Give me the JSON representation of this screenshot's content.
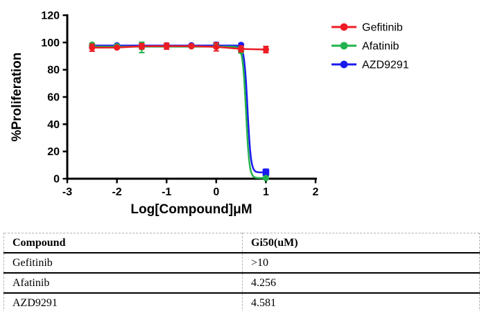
{
  "chart_data": {
    "type": "line",
    "title": "",
    "xlabel": "Log[Compound]μM",
    "ylabel": "%Proliferation",
    "xlim": [
      -3,
      2
    ],
    "ylim": [
      0,
      120
    ],
    "xticks": [
      "-3",
      "-2",
      "-1",
      "0",
      "1",
      "2"
    ],
    "yticks": [
      "0",
      "20",
      "40",
      "60",
      "80",
      "100",
      "120"
    ],
    "grid": false,
    "legend_position": "right",
    "x": [
      -2.5,
      -2,
      -1.5,
      -1,
      -0.5,
      0,
      0.5,
      1
    ],
    "series": [
      {
        "name": "Gefitinib",
        "color": "#ED1C24",
        "marker": "circle",
        "values": [
          96.2,
          96.3,
          97.2,
          97.3,
          97.3,
          96.8,
          95.3,
          94.8
        ],
        "errors": [
          2.6,
          0.8,
          2.0,
          2.2,
          0.9,
          3.0,
          2.2,
          2.3
        ],
        "fit": {
          "type": "connect"
        }
      },
      {
        "name": "Afatinib",
        "color": "#22B14C",
        "marker": "circle",
        "values": [
          98.4,
          97.3,
          96.4,
          97.4,
          97.2,
          97.4,
          93.6,
          0.5
        ],
        "errors": [
          0.8,
          0.6,
          3.8,
          0.6,
          0.6,
          0.6,
          1.2,
          0.8
        ],
        "fit": {
          "type": "sigmoid",
          "top": 96.9,
          "bottom": 0.5,
          "logIC50": 0.6,
          "hill": 13
        }
      },
      {
        "name": "AZD9291",
        "color": "#1A1AF0",
        "marker": "circle",
        "endpoint_marker": "square",
        "values": [
          97.5,
          97.9,
          97.9,
          97.9,
          97.9,
          98.4,
          98.2,
          4.6
        ],
        "errors": [
          0.6,
          0.6,
          0.6,
          0.6,
          0.6,
          1.6,
          0.8,
          2.4
        ],
        "fit": {
          "type": "sigmoid",
          "top": 97.8,
          "bottom": 4.6,
          "logIC50": 0.63,
          "hill": 13
        }
      }
    ]
  },
  "table": {
    "headers": [
      "Compound",
      "Gi50(uM)"
    ],
    "rows": [
      [
        "Gefitinib",
        ">10"
      ],
      [
        "Afatinib",
        "4.256"
      ],
      [
        "AZD9291",
        "4.581"
      ]
    ]
  }
}
